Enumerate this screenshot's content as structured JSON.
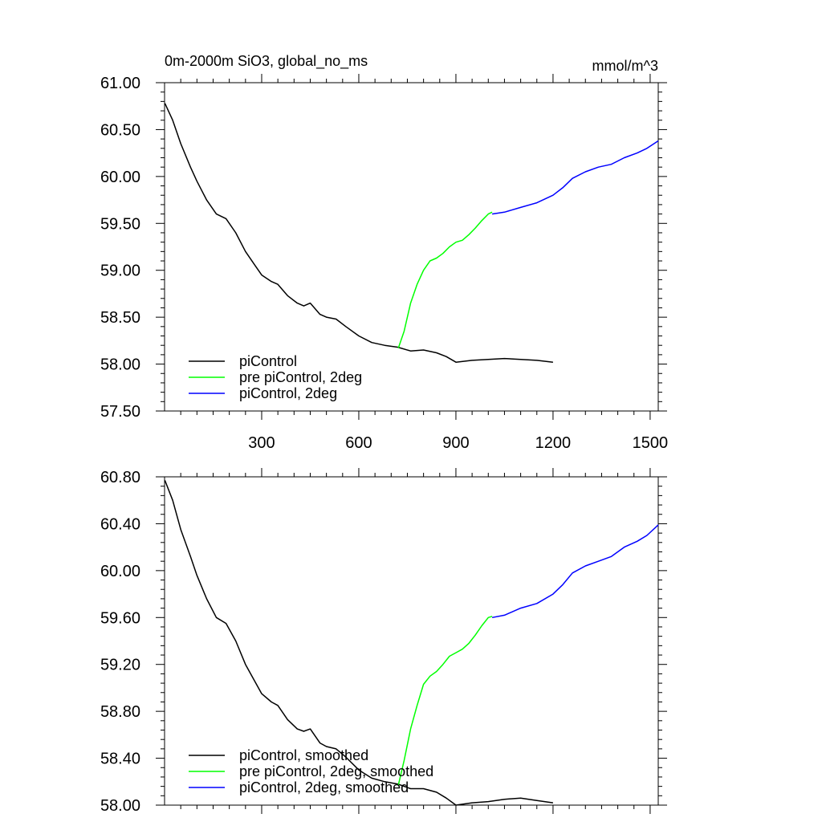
{
  "chart_data": [
    {
      "type": "line",
      "title": "0m-2000m SiO3, global_no_ms",
      "units": "mmol/m^3",
      "xlim": [
        0,
        1525
      ],
      "ylim": [
        57.5,
        61.0
      ],
      "xticks": [
        300,
        600,
        900,
        1200,
        1500
      ],
      "xtick_labels": [
        "300",
        "600",
        "900",
        "1200",
        "1500"
      ],
      "yticks": [
        57.5,
        58.0,
        58.5,
        59.0,
        59.5,
        60.0,
        60.5,
        61.0
      ],
      "ytick_labels": [
        "57.50",
        "58.00",
        "58.50",
        "59.00",
        "59.50",
        "60.00",
        "60.50",
        "61.00"
      ],
      "legend_position": "bottom-left",
      "series": [
        {
          "name": "piControl",
          "color": "#000000",
          "x": [
            1,
            25,
            50,
            80,
            100,
            130,
            160,
            190,
            220,
            250,
            280,
            300,
            330,
            350,
            380,
            410,
            430,
            450,
            480,
            500,
            530,
            560,
            600,
            640,
            680,
            720,
            760,
            800,
            840,
            870,
            900,
            950,
            1000,
            1050,
            1100,
            1150,
            1200
          ],
          "values": [
            60.78,
            60.6,
            60.35,
            60.1,
            59.95,
            59.75,
            59.6,
            59.55,
            59.4,
            59.2,
            59.05,
            58.95,
            58.88,
            58.85,
            58.73,
            58.65,
            58.62,
            58.65,
            58.53,
            58.5,
            58.48,
            58.4,
            58.3,
            58.23,
            58.2,
            58.18,
            58.14,
            58.15,
            58.12,
            58.08,
            58.02,
            58.04,
            58.05,
            58.06,
            58.05,
            58.04,
            58.02
          ]
        },
        {
          "name": "pre piControl, 2deg",
          "color": "#00ff00",
          "x": [
            722,
            740,
            760,
            780,
            800,
            820,
            840,
            860,
            880,
            900,
            920,
            940,
            960,
            980,
            1000,
            1012
          ],
          "values": [
            58.17,
            58.35,
            58.65,
            58.85,
            59.0,
            59.1,
            59.13,
            59.18,
            59.25,
            59.3,
            59.32,
            59.38,
            59.45,
            59.53,
            59.6,
            59.62
          ]
        },
        {
          "name": "piControl, 2deg",
          "color": "#0000ff",
          "x": [
            1012,
            1050,
            1100,
            1150,
            1200,
            1230,
            1260,
            1300,
            1340,
            1380,
            1420,
            1460,
            1490,
            1525
          ],
          "values": [
            59.6,
            59.62,
            59.67,
            59.72,
            59.8,
            59.88,
            59.98,
            60.05,
            60.1,
            60.13,
            60.2,
            60.25,
            60.3,
            60.38
          ]
        }
      ]
    },
    {
      "type": "line",
      "xlim": [
        0,
        1525
      ],
      "ylim": [
        58.0,
        60.8
      ],
      "xticks": [
        300,
        600,
        900,
        1200,
        1500
      ],
      "yticks": [
        58.0,
        58.4,
        58.8,
        59.2,
        59.6,
        60.0,
        60.4,
        60.8
      ],
      "ytick_labels": [
        "58.00",
        "58.40",
        "58.80",
        "59.20",
        "59.60",
        "60.00",
        "60.40",
        "60.80"
      ],
      "legend_position": "bottom-left",
      "series": [
        {
          "name": "piControl, smoothed",
          "color": "#000000",
          "x": [
            1,
            25,
            50,
            80,
            100,
            130,
            160,
            190,
            220,
            250,
            280,
            300,
            330,
            350,
            380,
            410,
            430,
            450,
            480,
            500,
            530,
            560,
            600,
            640,
            680,
            720,
            760,
            800,
            840,
            870,
            900,
            950,
            1000,
            1050,
            1100,
            1150,
            1200
          ],
          "values": [
            60.77,
            60.6,
            60.35,
            60.12,
            59.96,
            59.76,
            59.6,
            59.55,
            59.4,
            59.2,
            59.05,
            58.95,
            58.88,
            58.85,
            58.73,
            58.65,
            58.63,
            58.65,
            58.53,
            58.5,
            58.48,
            58.41,
            58.3,
            58.23,
            58.2,
            58.18,
            58.14,
            58.14,
            58.11,
            58.06,
            58.0,
            58.02,
            58.03,
            58.05,
            58.06,
            58.04,
            58.02
          ]
        },
        {
          "name": "pre piControl, 2deg, smoothed",
          "color": "#00ff00",
          "x": [
            722,
            740,
            760,
            780,
            800,
            820,
            840,
            860,
            880,
            900,
            920,
            940,
            960,
            980,
            1000,
            1012
          ],
          "values": [
            58.17,
            58.38,
            58.65,
            58.85,
            59.03,
            59.1,
            59.14,
            59.2,
            59.27,
            59.3,
            59.33,
            59.38,
            59.45,
            59.53,
            59.6,
            59.61
          ]
        },
        {
          "name": "piControl, 2deg, smoothed",
          "color": "#0000ff",
          "x": [
            1012,
            1050,
            1100,
            1150,
            1200,
            1230,
            1260,
            1300,
            1340,
            1380,
            1420,
            1460,
            1490,
            1525
          ],
          "values": [
            59.6,
            59.62,
            59.68,
            59.72,
            59.8,
            59.88,
            59.98,
            60.04,
            60.08,
            60.12,
            60.2,
            60.25,
            60.3,
            60.39
          ]
        }
      ]
    }
  ]
}
